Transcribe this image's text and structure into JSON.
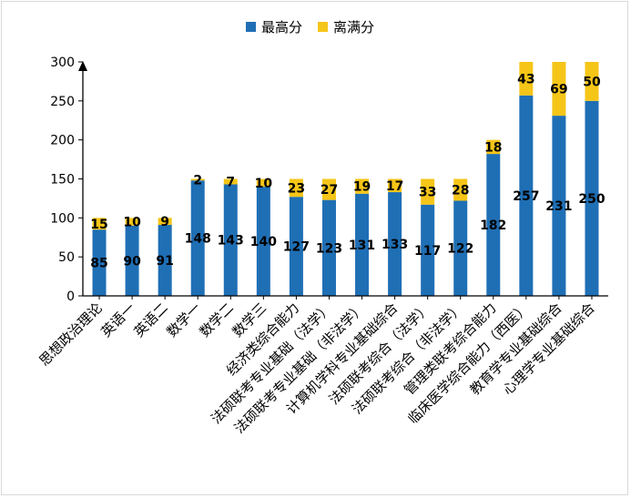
{
  "chart_data": {
    "type": "bar",
    "stacked": true,
    "categories": [
      "思想政治理论",
      "英语一",
      "英语二",
      "数学一",
      "数学二",
      "数学三",
      "经济类综合能力",
      "法硕联考专业基础（法学）",
      "法硕联考专业基础（非法学）",
      "计算机学科专业基础综合",
      "法硕联考综合（法学）",
      "法硕联考综合（非法学）",
      "管理类联考综合能力",
      "临床医学综合能力（西医）",
      "教育学专业基础综合",
      "心理学专业基础综合"
    ],
    "series": [
      {
        "name": "最高分",
        "color": "#1f6fb5",
        "values": [
          85,
          90,
          91,
          148,
          143,
          140,
          127,
          123,
          131,
          133,
          117,
          122,
          182,
          257,
          231,
          250
        ]
      },
      {
        "name": "离满分",
        "color": "#f5c518",
        "values": [
          15,
          10,
          9,
          2,
          7,
          10,
          23,
          27,
          19,
          17,
          33,
          28,
          18,
          43,
          69,
          50
        ]
      }
    ],
    "yticks": [
      0,
      50,
      100,
      150,
      200,
      250,
      300
    ],
    "ylim": [
      0,
      300
    ],
    "legend": "top-center",
    "grid": false
  }
}
